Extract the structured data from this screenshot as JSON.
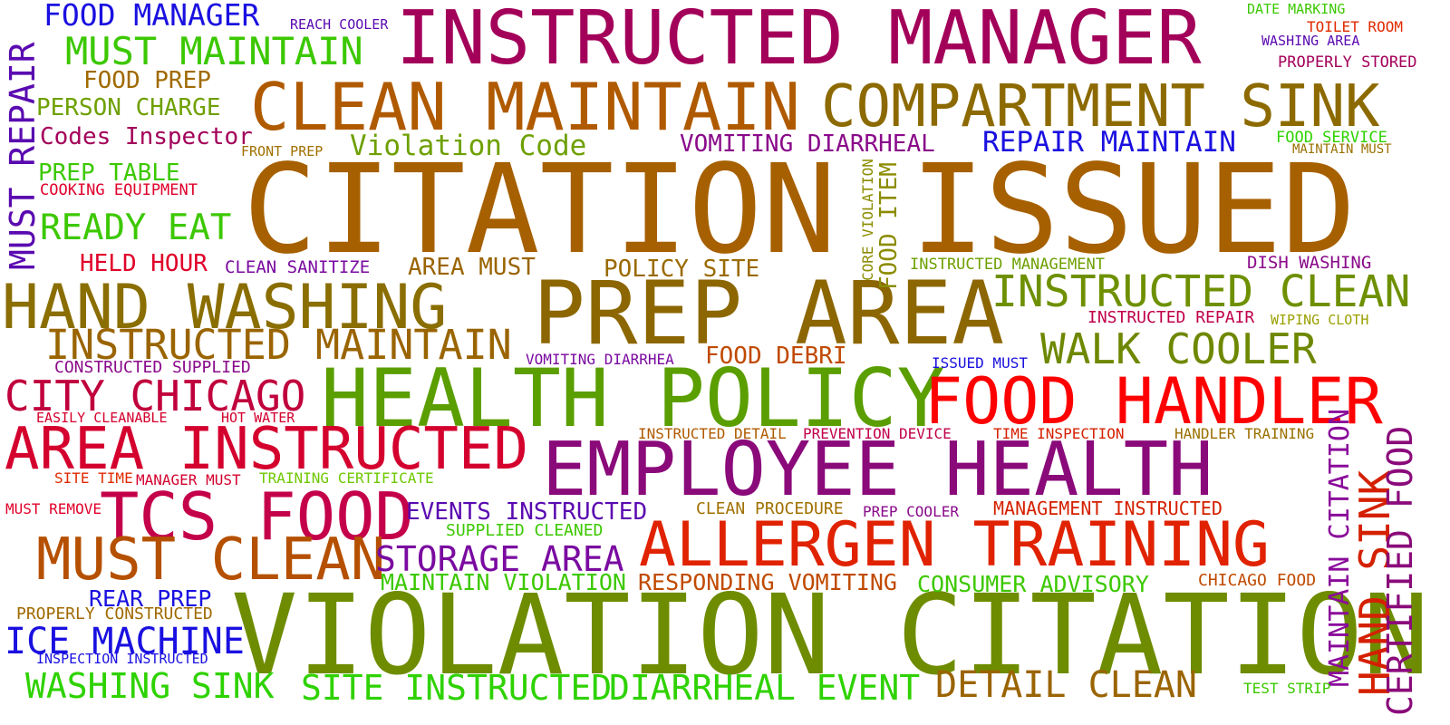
{
  "words": [
    {
      "text": "CITATION ISSUED",
      "color": "#a66000"
    },
    {
      "text": "VIOLATION CITATION",
      "color": "#6e8c00"
    },
    {
      "text": "INSTRUCTED MANAGER",
      "color": "#a3005a"
    },
    {
      "text": "PREP AREA",
      "color": "#8c6600"
    },
    {
      "text": "HEALTH POLICY",
      "color": "#5a9e00"
    },
    {
      "text": "EMPLOYEE HEALTH",
      "color": "#8a0a7a"
    },
    {
      "text": "FOOD HANDLER",
      "color": "#ff0000"
    },
    {
      "text": "CLEAN MAINTAIN",
      "color": "#b05a00"
    },
    {
      "text": "COMPARTMENT SINK",
      "color": "#8c6a00"
    },
    {
      "text": "ALLERGEN TRAINING",
      "color": "#e02200"
    },
    {
      "text": "TCS FOOD",
      "color": "#c4004a"
    },
    {
      "text": "AREA INSTRUCTED",
      "color": "#d4002e"
    },
    {
      "text": "HAND WASHING",
      "color": "#8a6e00"
    },
    {
      "text": "MUST CLEAN",
      "color": "#b55000"
    },
    {
      "text": "INSTRUCTED CLEAN",
      "color": "#6e9000"
    },
    {
      "text": "CITY CHICAGO",
      "color": "#c0003c"
    },
    {
      "text": "INSTRUCTED MAINTAIN",
      "color": "#9a6400"
    },
    {
      "text": "WALK COOLER",
      "color": "#6e8800"
    },
    {
      "text": "MUST MAINTAIN",
      "color": "#3cc800"
    },
    {
      "text": "READY EAT",
      "color": "#3cc800"
    },
    {
      "text": "ICE MACHINE",
      "color": "#1a10e0"
    },
    {
      "text": "WASHING SINK",
      "color": "#2ed200"
    },
    {
      "text": "SITE INSTRUCTED",
      "color": "#2ed200"
    },
    {
      "text": "DIARRHEAL EVENT",
      "color": "#2ed200"
    },
    {
      "text": "DETAIL CLEAN",
      "color": "#9a6400"
    },
    {
      "text": "STORAGE AREA",
      "color": "#7a0aa0"
    },
    {
      "text": "FOOD MANAGER",
      "color": "#1a10e0"
    },
    {
      "text": "MUST REPAIR",
      "color": "#5a0ab0"
    },
    {
      "text": "HAND SINK",
      "color": "#d42000"
    },
    {
      "text": "CERTIFIED FOOD",
      "color": "#8a0a7a"
    },
    {
      "text": "MAINTAIN CITATION",
      "color": "#8a0a9a"
    },
    {
      "text": "Violation Code",
      "color": "#6ea000"
    },
    {
      "text": "Codes Inspector",
      "color": "#a3005a"
    },
    {
      "text": "REPAIR MAINTAIN",
      "color": "#1a10e0"
    },
    {
      "text": "VOMITING DIARRHEAL",
      "color": "#8a0a8a"
    },
    {
      "text": "PERSON CHARGE",
      "color": "#6ea000"
    },
    {
      "text": "FOOD PREP",
      "color": "#a06a00"
    },
    {
      "text": "PREP TABLE",
      "color": "#3cc800"
    },
    {
      "text": "HELD HOUR",
      "color": "#e0002a"
    },
    {
      "text": "AREA MUST",
      "color": "#9a6400"
    },
    {
      "text": "POLICY SITE",
      "color": "#9a6a00"
    },
    {
      "text": "FOOD DEBRI",
      "color": "#c04a00"
    },
    {
      "text": "EVENTS INSTRUCTED",
      "color": "#5a0ab0"
    },
    {
      "text": "MAINTAIN VIOLATION",
      "color": "#3cc800"
    },
    {
      "text": "RESPONDING VOMITING",
      "color": "#c04a00"
    },
    {
      "text": "CONSUMER ADVISORY",
      "color": "#3cc800"
    },
    {
      "text": "REAR PREP",
      "color": "#1a10e0"
    },
    {
      "text": "FOOD ITEM",
      "color": "#8c8c00"
    },
    {
      "text": "CLEAN SANITIZE",
      "color": "#7a0aa0"
    },
    {
      "text": "DISH WASHING",
      "color": "#8a0a8a"
    },
    {
      "text": "INSTRUCTED MANAGEMENT",
      "color": "#6ea000"
    },
    {
      "text": "CORE VIOLATION",
      "color": "#8c8c00"
    },
    {
      "text": "INSTRUCTED REPAIR",
      "color": "#c0004a"
    },
    {
      "text": "WIPING CLOTH",
      "color": "#9aa000"
    },
    {
      "text": "CONSTRUCTED SUPPLIED",
      "color": "#8a0a8a"
    },
    {
      "text": "VOMITING DIARRHEA",
      "color": "#7a0aa0"
    },
    {
      "text": "ISSUED MUST",
      "color": "#1a10e0"
    },
    {
      "text": "EASILY CLEANABLE",
      "color": "#d4002e"
    },
    {
      "text": "HOT WATER",
      "color": "#d4002e"
    },
    {
      "text": "INSTRUCTED DETAIL",
      "color": "#b05a00"
    },
    {
      "text": "PREVENTION DEVICE",
      "color": "#c0004a"
    },
    {
      "text": "TIME INSPECTION",
      "color": "#d42000"
    },
    {
      "text": "HANDLER TRAINING",
      "color": "#9a7000"
    },
    {
      "text": "SITE TIME",
      "color": "#e02a00"
    },
    {
      "text": "MANAGER MUST",
      "color": "#d4002e"
    },
    {
      "text": "TRAINING CERTIFICATE",
      "color": "#6ec800"
    },
    {
      "text": "MUST REMOVE",
      "color": "#e0002a"
    },
    {
      "text": "CLEAN PROCEDURE",
      "color": "#a07000"
    },
    {
      "text": "PREP COOLER",
      "color": "#8a0a8a"
    },
    {
      "text": "MANAGEMENT INSTRUCTED",
      "color": "#d42000"
    },
    {
      "text": "SUPPLIED CLEANED",
      "color": "#3cc800"
    },
    {
      "text": "CHICAGO FOOD",
      "color": "#c04a00"
    },
    {
      "text": "PROPERLY CONSTRUCTED",
      "color": "#a06a00"
    },
    {
      "text": "INSPECTION INSTRUCTED",
      "color": "#1a10e0"
    },
    {
      "text": "TEST STRIP",
      "color": "#3cc800"
    },
    {
      "text": "COOKING EQUIPMENT",
      "color": "#e0002a"
    },
    {
      "text": "FRONT PREP",
      "color": "#a07000"
    },
    {
      "text": "REACH COOLER",
      "color": "#5a0ab0"
    },
    {
      "text": "DATE MARKING",
      "color": "#3cc800"
    },
    {
      "text": "TOILET ROOM",
      "color": "#e02a00"
    },
    {
      "text": "WASHING AREA",
      "color": "#5a0ab0"
    },
    {
      "text": "PROPERLY STORED",
      "color": "#a3005a"
    },
    {
      "text": "FOOD SERVICE",
      "color": "#2ed200"
    },
    {
      "text": "MAINTAIN MUST",
      "color": "#9a7000"
    }
  ]
}
